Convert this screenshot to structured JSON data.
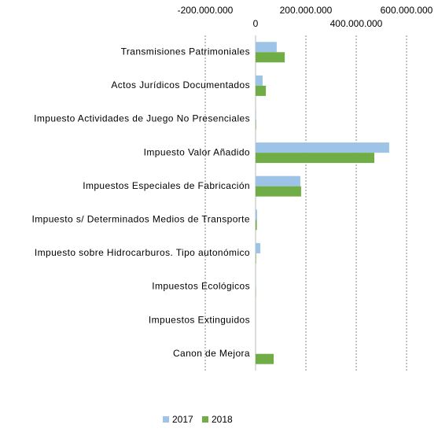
{
  "chart_data": {
    "type": "hbar",
    "categories": [
      "Transmisiones Patrimoniales",
      "Actos Jurídicos Documentados",
      "Impuesto Actividades de Juego No Presenciales",
      "Impuesto Valor Añadido",
      "Impuestos Especiales de Fabricación",
      "Impuesto s/ Determinados Medios de Transporte",
      "Impuesto sobre Hidrocarburos. Tipo autonómico",
      "Impuestos Ecológicos",
      "Impuestos Extinguidos",
      "Canon de Mejora"
    ],
    "series": [
      {
        "name": "2017",
        "color": "#9dc3e6",
        "values": [
          84000000,
          28000000,
          2000000,
          531000000,
          178000000,
          6000000,
          19000000,
          1000000,
          0,
          1000000
        ]
      },
      {
        "name": "2018",
        "color": "#70ad47",
        "values": [
          116000000,
          41000000,
          2000000,
          472000000,
          181000000,
          5000000,
          2000000,
          1000000,
          0,
          72000000
        ]
      }
    ],
    "xlim": [
      -200000000,
      600000000
    ],
    "xticks": [
      {
        "value": -200000000,
        "label": "-200.000.000"
      },
      0,
      {
        "value": 200000000,
        "label": "200.000.000"
      },
      {
        "value": 400000000,
        "label": "400.000.000"
      },
      {
        "value": 600000000,
        "label": "600.000.000"
      }
    ],
    "grid": true,
    "legend": "bottom"
  }
}
